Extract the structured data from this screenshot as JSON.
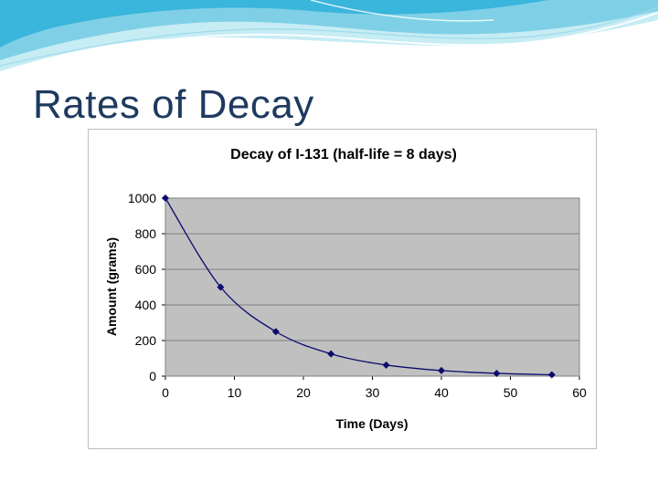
{
  "slide": {
    "title": "Rates of Decay"
  },
  "chart_data": {
    "type": "scatter",
    "title": "Decay of I-131 (half-life = 8 days)",
    "xlabel": "Time (Days)",
    "ylabel": "Amount (grams)",
    "xlim": [
      0,
      60
    ],
    "ylim": [
      0,
      1000
    ],
    "xticks": [
      0,
      10,
      20,
      30,
      40,
      50,
      60
    ],
    "yticks": [
      0,
      200,
      400,
      600,
      800,
      1000
    ],
    "grid": true,
    "legend": "none",
    "plot_background": "#c0c0c0",
    "marker_color": "#0b0b6e",
    "line_color": "#0b0b6e",
    "series": [
      {
        "x": [
          0,
          8,
          16,
          24,
          32,
          40,
          48,
          56
        ],
        "y": [
          1000,
          500,
          250,
          125,
          62.5,
          31.25,
          15.625,
          7.8125
        ]
      }
    ]
  }
}
